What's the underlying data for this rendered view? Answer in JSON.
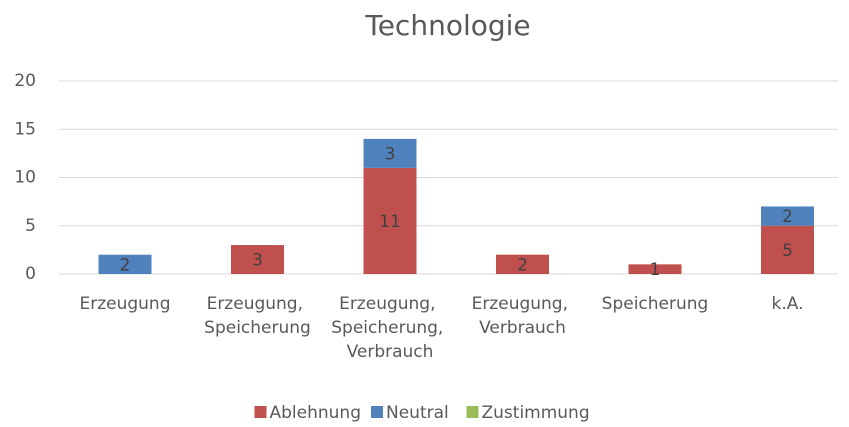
{
  "chart_data": {
    "type": "stacked_bar",
    "title": "Technologie",
    "categories": [
      "Erzeugung",
      "Erzeugung, Speicherung",
      "Erzeugung, Speicherung, Verbrauch",
      "Erzeugung, Verbrauch",
      "Speicherung",
      "k.A."
    ],
    "series": [
      {
        "name": "Ablehnung",
        "color": "#c0504d",
        "values": [
          0,
          3,
          11,
          2,
          1,
          5
        ]
      },
      {
        "name": "Neutral",
        "color": "#4f81bd",
        "values": [
          2,
          0,
          3,
          0,
          0,
          2
        ]
      },
      {
        "name": "Zustimmung",
        "color": "#9bbb59",
        "values": [
          0,
          0,
          0,
          0,
          0,
          0
        ]
      }
    ],
    "ylim": [
      0,
      20
    ],
    "yticks": [
      0,
      5,
      10,
      15,
      20
    ],
    "grid": true,
    "legend": "bottom"
  }
}
